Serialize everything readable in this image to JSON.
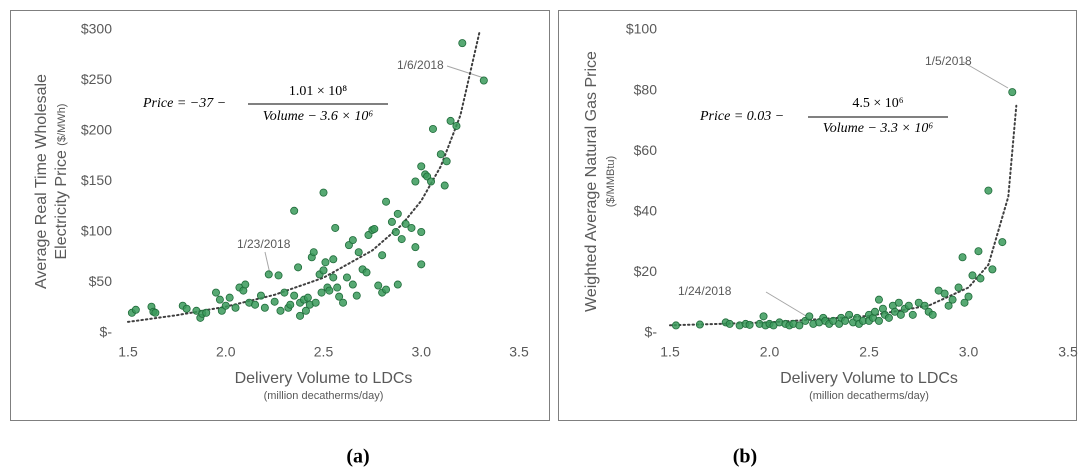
{
  "chart_data": [
    {
      "type": "scatter",
      "panel_label": "(a)",
      "x_label": "Delivery Volume to LDCs",
      "x_label_sub": "(million decatherms/day)",
      "y_label": [
        "Average Real Time Wholesale",
        "Electricity Price"
      ],
      "y_label_units": "($/MWh)",
      "equation": {
        "lhs": "Price = −37 −",
        "numerator": "1.01 × 10⁸",
        "denominator": "Volume − 3.6 × 10⁶"
      },
      "annotations": [
        {
          "text": "1/6/2018"
        },
        {
          "text": "1/23/2018"
        }
      ],
      "xlim": [
        1.5,
        3.5
      ],
      "xticks": [
        1.5,
        {
          "value": 2,
          "label": "2.0"
        },
        2.5,
        {
          "value": 3,
          "label": "3.0"
        },
        3.5
      ],
      "ylim": [
        0,
        300
      ],
      "yticks": [
        {
          "value": 0,
          "label": "$-"
        },
        {
          "value": 50,
          "label": "$50"
        },
        {
          "value": 100,
          "label": "$100"
        },
        {
          "value": 150,
          "label": "$150"
        },
        {
          "value": 200,
          "label": "$200"
        },
        {
          "value": 250,
          "label": "$250"
        },
        {
          "value": 300,
          "label": "$300"
        }
      ],
      "grid": false,
      "series": [
        {
          "color": "#3a9a5b",
          "x": [
            1.52,
            1.54,
            1.62,
            1.63,
            1.64,
            1.78,
            1.8,
            1.85,
            1.87,
            1.88,
            1.9,
            1.95,
            1.97,
            1.98,
            2.0,
            2.02,
            2.05,
            2.07,
            2.09,
            2.1,
            2.12,
            2.15,
            2.18,
            2.2,
            2.22,
            2.25,
            2.27,
            2.28,
            2.3,
            2.32,
            2.33,
            2.35,
            2.35,
            2.37,
            2.38,
            2.38,
            2.4,
            2.41,
            2.42,
            2.43,
            2.44,
            2.45,
            2.46,
            2.48,
            2.49,
            2.5,
            2.5,
            2.51,
            2.52,
            2.53,
            2.55,
            2.55,
            2.56,
            2.57,
            2.58,
            2.6,
            2.62,
            2.63,
            2.65,
            2.65,
            2.67,
            2.68,
            2.7,
            2.72,
            2.73,
            2.75,
            2.76,
            2.78,
            2.8,
            2.8,
            2.82,
            2.82,
            2.85,
            2.87,
            2.88,
            2.88,
            2.9,
            2.92,
            2.95,
            2.97,
            2.97,
            3.0,
            3.0,
            3.0,
            3.02,
            3.03,
            3.05,
            3.06,
            3.1,
            3.12,
            3.13,
            3.15,
            3.18,
            3.21,
            3.32
          ],
          "values": [
            20,
            23,
            26,
            21,
            20,
            27,
            24,
            22,
            15,
            19,
            20,
            40,
            33,
            22,
            27,
            35,
            25,
            45,
            42,
            48,
            30,
            28,
            37,
            25,
            58,
            31,
            57,
            22,
            40,
            25,
            28,
            121,
            37,
            65,
            17,
            30,
            33,
            22,
            35,
            28,
            75,
            80,
            30,
            58,
            40,
            139,
            62,
            70,
            45,
            42,
            73,
            55,
            104,
            45,
            36,
            30,
            55,
            87,
            92,
            48,
            37,
            80,
            63,
            60,
            97,
            102,
            103,
            47,
            77,
            40,
            130,
            43,
            110,
            100,
            118,
            48,
            93,
            108,
            104,
            150,
            85,
            165,
            68,
            100,
            157,
            155,
            150,
            202,
            177,
            146,
            170,
            210,
            205,
            287,
            250
          ]
        }
      ],
      "trendline": {
        "color": "#404040",
        "x": [
          1.5,
          1.75,
          2,
          2.25,
          2.5,
          2.75,
          2.9,
          3,
          3.1,
          3.2,
          3.3
        ],
        "values": [
          11,
          17.6,
          26,
          37.8,
          54.8,
          81.8,
          107,
          131,
          165,
          215.5,
          299.7
        ]
      }
    },
    {
      "type": "scatter",
      "panel_label": "(b)",
      "x_label": "Delivery Volume to LDCs",
      "x_label_sub": "(million decatherms/day)",
      "y_label": [
        "Weighted Average Natural Gas Price"
      ],
      "y_label_units": "($/MMBtu)",
      "equation": {
        "lhs": "Price = 0.03 −",
        "numerator": "4.5 × 10⁶",
        "denominator": "Volume − 3.3 × 10⁶"
      },
      "annotations": [
        {
          "text": "1/5/2018"
        },
        {
          "text": "1/24/2018"
        }
      ],
      "xlim": [
        1.5,
        3.5
      ],
      "xticks": [
        1.5,
        {
          "value": 2,
          "label": "2.0"
        },
        2.5,
        {
          "value": 3,
          "label": "3.0"
        },
        3.5
      ],
      "ylim": [
        0,
        100
      ],
      "yticks": [
        {
          "value": 0,
          "label": "$-"
        },
        {
          "value": 20,
          "label": "$20"
        },
        {
          "value": 40,
          "label": "$40"
        },
        {
          "value": 60,
          "label": "$60"
        },
        {
          "value": 80,
          "label": "$80"
        },
        {
          "value": 100,
          "label": "$100"
        }
      ],
      "grid": false,
      "series": [
        {
          "color": "#3a9a5b",
          "x": [
            1.53,
            1.65,
            1.78,
            1.8,
            1.85,
            1.88,
            1.9,
            1.95,
            1.97,
            1.98,
            2.0,
            2.02,
            2.05,
            2.08,
            2.1,
            2.12,
            2.15,
            2.18,
            2.2,
            2.22,
            2.25,
            2.27,
            2.28,
            2.3,
            2.32,
            2.35,
            2.36,
            2.38,
            2.4,
            2.42,
            2.44,
            2.45,
            2.47,
            2.5,
            2.5,
            2.52,
            2.53,
            2.55,
            2.55,
            2.57,
            2.58,
            2.6,
            2.62,
            2.63,
            2.65,
            2.66,
            2.68,
            2.7,
            2.72,
            2.75,
            2.78,
            2.8,
            2.82,
            2.85,
            2.88,
            2.9,
            2.92,
            2.95,
            2.97,
            2.98,
            3.0,
            3.02,
            3.05,
            3.06,
            3.1,
            3.12,
            3.17,
            3.22
          ],
          "values": [
            2.5,
            2.8,
            3.5,
            3,
            2.5,
            3,
            2.7,
            3,
            5.5,
            2.5,
            3,
            2.5,
            3.5,
            3,
            2.5,
            3,
            2.5,
            4,
            5.5,
            3,
            3.5,
            5,
            4,
            3,
            4,
            3,
            5,
            4,
            6,
            3.5,
            5,
            3,
            4,
            6,
            4,
            5,
            7,
            11,
            4,
            8,
            6,
            5,
            9,
            7,
            10,
            6,
            8,
            9,
            6,
            10,
            9,
            7,
            6,
            14,
            13,
            9,
            11,
            15,
            25,
            10,
            12,
            19,
            27,
            18,
            47,
            21,
            30,
            79.5
          ]
        }
      ],
      "trendline": {
        "color": "#404040",
        "x": [
          1.5,
          2,
          2.5,
          2.8,
          3,
          3.1,
          3.2,
          3.24
        ],
        "values": [
          2.53,
          3.49,
          5.66,
          9.03,
          15.03,
          22.5,
          45,
          75
        ]
      }
    }
  ]
}
